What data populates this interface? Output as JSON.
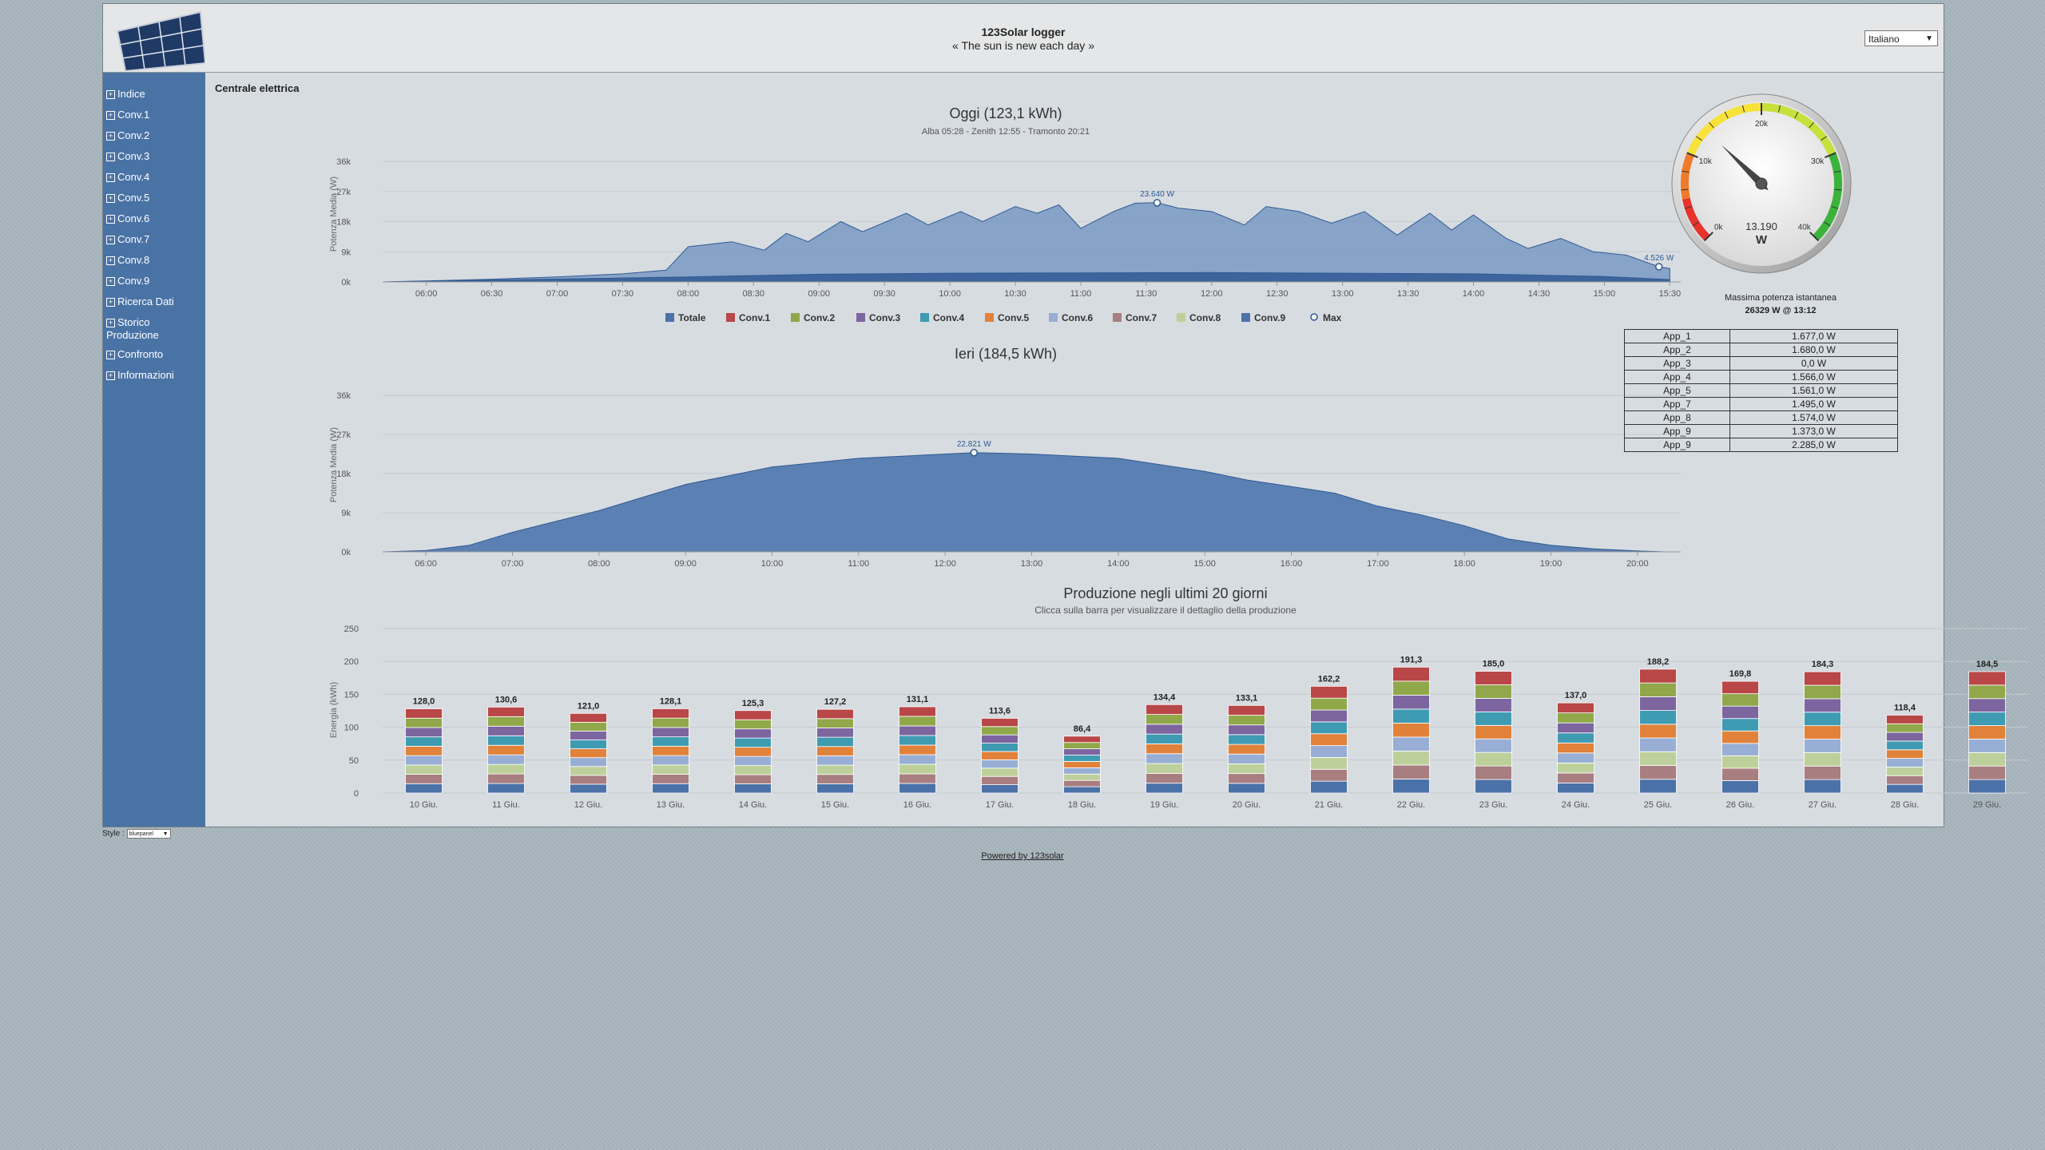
{
  "header": {
    "title": "123Solar logger",
    "subtitle": "« The sun is new each day »",
    "language": "Italiano"
  },
  "sidebar": {
    "items": [
      "Indice",
      "Conv.1",
      "Conv.2",
      "Conv.3",
      "Conv.4",
      "Conv.5",
      "Conv.6",
      "Conv.7",
      "Conv.8",
      "Conv.9",
      "Ricerca Dati",
      "Storico Produzione",
      "Confronto",
      "Informazioni"
    ]
  },
  "main": {
    "section_title": "Centrale elettrica"
  },
  "colors": {
    "totale": "#4b72a8",
    "sidebar": "#4a73a5",
    "series": [
      "#b94748",
      "#90a84a",
      "#7d65a0",
      "#3f9bb2",
      "#e1823b",
      "#98aed4",
      "#a87e80",
      "#bdd09b",
      "#4b72a8"
    ]
  },
  "gauge": {
    "value": "13.190",
    "unit": "W",
    "ticks": [
      "0k",
      "10k",
      "20k",
      "30k",
      "40k"
    ],
    "max_label": "Massima potenza istantanea",
    "max_value": "26329 W @ 13:12"
  },
  "apps": [
    {
      "name": "App_1",
      "value": "1.677,0 W"
    },
    {
      "name": "App_2",
      "value": "1.680,0 W"
    },
    {
      "name": "App_3",
      "value": "0,0 W"
    },
    {
      "name": "App_4",
      "value": "1.566,0 W"
    },
    {
      "name": "App_5",
      "value": "1.561,0 W"
    },
    {
      "name": "App_7",
      "value": "1.495,0 W"
    },
    {
      "name": "App_8",
      "value": "1.574,0 W"
    },
    {
      "name": "App_9",
      "value": "1.373,0 W"
    },
    {
      "name": "App_9",
      "value": "2.285,0 W"
    }
  ],
  "chart_data": [
    {
      "type": "area",
      "title": "Oggi (123,1 kWh)",
      "subtitle": "Alba 05:28 - Zenith 12:55 - Tramonto 20:21",
      "ylabel": "Potenza Media (W)",
      "yticks": [
        "0k",
        "9k",
        "18k",
        "27k",
        "36k"
      ],
      "ylim": [
        0,
        36000
      ],
      "xlim": [
        "05:40",
        "15:35"
      ],
      "xticks": [
        "06:00",
        "06:30",
        "07:00",
        "07:30",
        "08:00",
        "08:30",
        "09:00",
        "09:30",
        "10:00",
        "10:30",
        "11:00",
        "11:30",
        "12:00",
        "12:30",
        "13:00",
        "13:30",
        "14:00",
        "14:30",
        "15:00",
        "15:30"
      ],
      "legend": [
        "Totale",
        "Conv.1",
        "Conv.2",
        "Conv.3",
        "Conv.4",
        "Conv.5",
        "Conv.6",
        "Conv.7",
        "Conv.8",
        "Conv.9",
        "Max"
      ],
      "annotations": [
        {
          "time": "11:35",
          "value": 23640,
          "label": "23.640 W"
        },
        {
          "time": "15:25",
          "value": 4526,
          "label": "4.526 W"
        }
      ],
      "series": [
        {
          "name": "Totale",
          "points": [
            [
              "05:40",
              0
            ],
            [
              "06:00",
              300
            ],
            [
              "06:30",
              800
            ],
            [
              "07:00",
              1500
            ],
            [
              "07:30",
              2400
            ],
            [
              "07:50",
              3500
            ],
            [
              "08:00",
              10500
            ],
            [
              "08:20",
              12000
            ],
            [
              "08:35",
              9500
            ],
            [
              "08:45",
              14500
            ],
            [
              "08:55",
              12000
            ],
            [
              "09:10",
              18000
            ],
            [
              "09:20",
              15000
            ],
            [
              "09:40",
              20500
            ],
            [
              "09:50",
              17000
            ],
            [
              "10:05",
              21000
            ],
            [
              "10:15",
              18000
            ],
            [
              "10:30",
              22500
            ],
            [
              "10:40",
              20500
            ],
            [
              "10:50",
              23000
            ],
            [
              "11:00",
              16000
            ],
            [
              "11:15",
              21000
            ],
            [
              "11:25",
              23500
            ],
            [
              "11:35",
              23640
            ],
            [
              "11:45",
              22000
            ],
            [
              "12:00",
              21000
            ],
            [
              "12:15",
              17000
            ],
            [
              "12:25",
              22500
            ],
            [
              "12:40",
              21000
            ],
            [
              "12:55",
              17500
            ],
            [
              "13:10",
              21000
            ],
            [
              "13:25",
              14000
            ],
            [
              "13:40",
              20500
            ],
            [
              "13:50",
              15500
            ],
            [
              "14:00",
              20000
            ],
            [
              "14:15",
              13000
            ],
            [
              "14:25",
              10000
            ],
            [
              "14:40",
              13000
            ],
            [
              "14:55",
              9000
            ],
            [
              "15:10",
              8000
            ],
            [
              "15:25",
              4526
            ],
            [
              "15:30",
              4000
            ]
          ]
        },
        {
          "name": "Conv.9",
          "points": [
            [
              "05:40",
              0
            ],
            [
              "08:00",
              1500
            ],
            [
              "09:00",
              2300
            ],
            [
              "10:00",
              2600
            ],
            [
              "11:00",
              2700
            ],
            [
              "12:00",
              2800
            ],
            [
              "13:00",
              2600
            ],
            [
              "14:00",
              2400
            ],
            [
              "15:00",
              1600
            ],
            [
              "15:30",
              700
            ]
          ]
        }
      ]
    },
    {
      "type": "area",
      "title": "Ieri (184,5 kWh)",
      "ylabel": "Potenza Media (W)",
      "yticks": [
        "0k",
        "9k",
        "18k",
        "27k",
        "36k"
      ],
      "ylim": [
        0,
        36000
      ],
      "xlim": [
        "05:30",
        "20:30"
      ],
      "xticks": [
        "06:00",
        "07:00",
        "08:00",
        "09:00",
        "10:00",
        "11:00",
        "12:00",
        "13:00",
        "14:00",
        "15:00",
        "16:00",
        "17:00",
        "18:00",
        "19:00",
        "20:00"
      ],
      "annotations": [
        {
          "time": "12:20",
          "value": 22821,
          "label": "22.821 W"
        }
      ],
      "series": [
        {
          "name": "Totale",
          "points": [
            [
              "05:30",
              0
            ],
            [
              "06:00",
              300
            ],
            [
              "06:30",
              1500
            ],
            [
              "07:00",
              4500
            ],
            [
              "07:30",
              7000
            ],
            [
              "08:00",
              9500
            ],
            [
              "08:30",
              12500
            ],
            [
              "09:00",
              15500
            ],
            [
              "09:30",
              17500
            ],
            [
              "10:00",
              19500
            ],
            [
              "10:30",
              20500
            ],
            [
              "11:00",
              21500
            ],
            [
              "11:30",
              22000
            ],
            [
              "12:00",
              22500
            ],
            [
              "12:20",
              22821
            ],
            [
              "13:00",
              22500
            ],
            [
              "13:30",
              22000
            ],
            [
              "14:00",
              21500
            ],
            [
              "14:30",
              20000
            ],
            [
              "15:00",
              18500
            ],
            [
              "15:30",
              16500
            ],
            [
              "16:00",
              15000
            ],
            [
              "16:30",
              13500
            ],
            [
              "17:00",
              10500
            ],
            [
              "17:30",
              8500
            ],
            [
              "18:00",
              6000
            ],
            [
              "18:30",
              3000
            ],
            [
              "19:00",
              1500
            ],
            [
              "19:30",
              700
            ],
            [
              "20:00",
              200
            ],
            [
              "20:20",
              0
            ]
          ]
        }
      ]
    },
    {
      "type": "bar",
      "title": "Produzione negli ultimi 20 giorni",
      "subtitle": "Clicca sulla barra per visualizzare il dettaglio della produzione",
      "ylabel": "Energia (kWh)",
      "ylim": [
        0,
        250
      ],
      "yticks": [
        "0",
        "50",
        "100",
        "150",
        "200",
        "250"
      ],
      "categories": [
        "10 Giu.",
        "11 Giu.",
        "12 Giu.",
        "13 Giu.",
        "14 Giu.",
        "15 Giu.",
        "16 Giu.",
        "17 Giu.",
        "18 Giu.",
        "19 Giu.",
        "20 Giu.",
        "21 Giu.",
        "22 Giu.",
        "23 Giu.",
        "24 Giu.",
        "25 Giu.",
        "26 Giu.",
        "27 Giu.",
        "28 Giu.",
        "29 Giu."
      ],
      "values": [
        128.0,
        130.6,
        121.0,
        128.1,
        125.3,
        127.2,
        131.1,
        113.6,
        86.4,
        134.4,
        133.1,
        162.2,
        191.3,
        185.0,
        137.0,
        188.2,
        169.8,
        184.3,
        118.4,
        184.5
      ],
      "value_labels": [
        "128,0",
        "130,6",
        "121,0",
        "128,1",
        "125,3",
        "127,2",
        "131,1",
        "113,6",
        "86,4",
        "134,4",
        "133,1",
        "162,2",
        "191,3",
        "185,0",
        "137,0",
        "188,2",
        "169,8",
        "184,3",
        "118,4",
        "184,5"
      ]
    }
  ]
}
